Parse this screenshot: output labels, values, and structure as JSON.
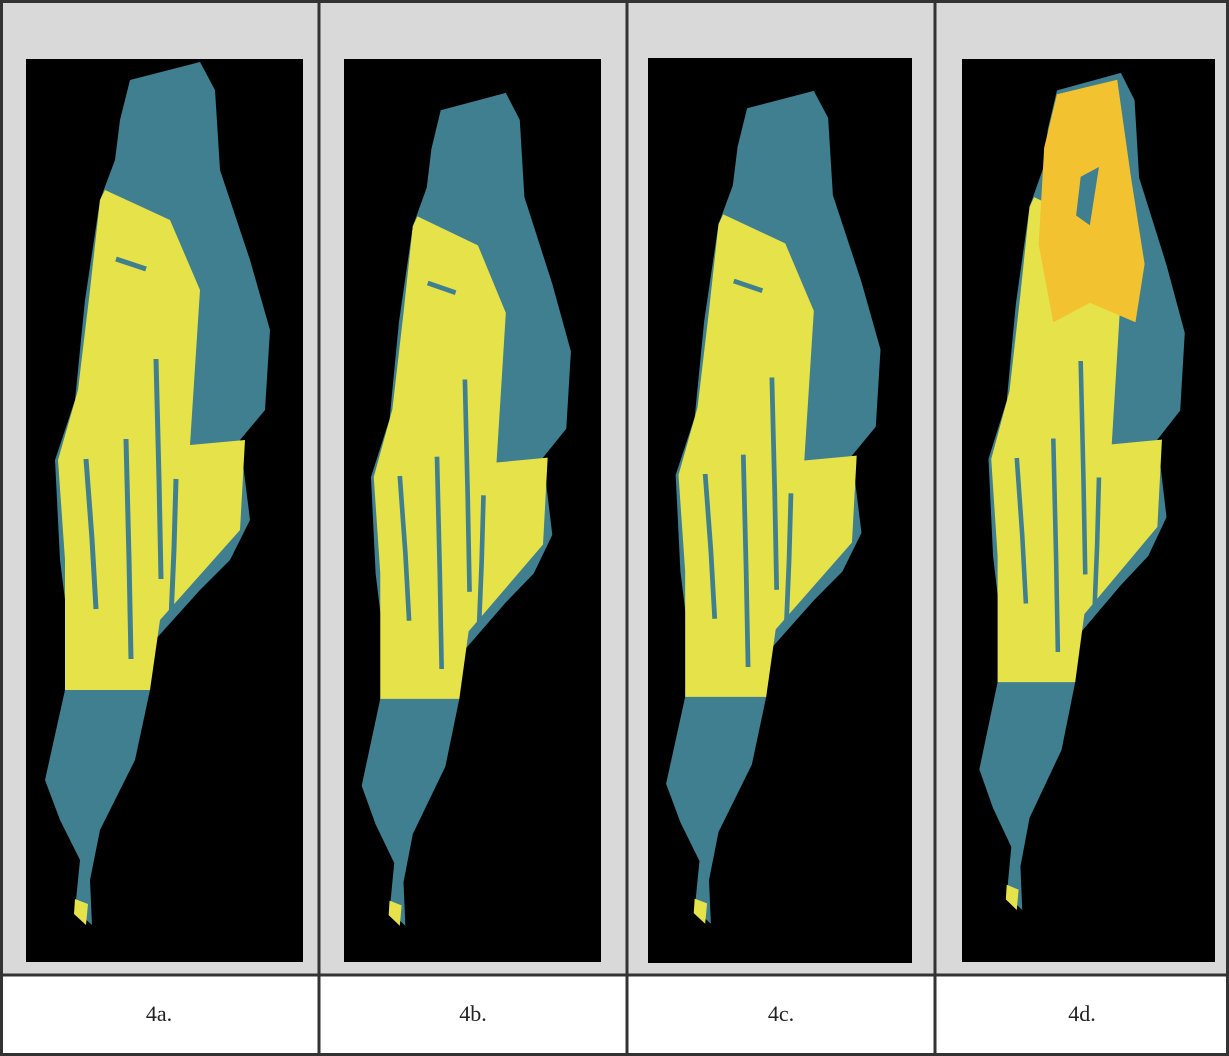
{
  "panels": [
    {
      "caption": "4a."
    },
    {
      "caption": "4b."
    },
    {
      "caption": "4c."
    },
    {
      "caption": "4d."
    }
  ]
}
